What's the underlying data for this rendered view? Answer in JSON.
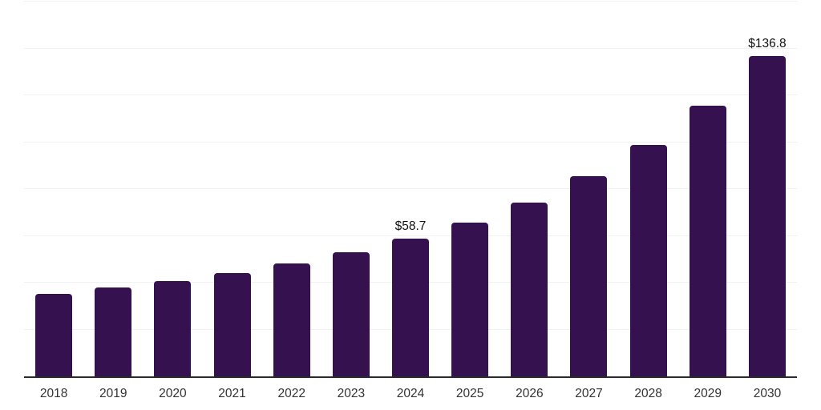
{
  "chart_data": {
    "type": "bar",
    "title": "",
    "xlabel": "",
    "ylabel": "",
    "categories": [
      "2018",
      "2019",
      "2020",
      "2021",
      "2022",
      "2023",
      "2024",
      "2025",
      "2026",
      "2027",
      "2028",
      "2029",
      "2030"
    ],
    "values": [
      35.3,
      37.9,
      40.8,
      44.2,
      48.2,
      53.1,
      58.7,
      65.7,
      74.3,
      85.5,
      98.9,
      115.7,
      136.8
    ],
    "data_labels": {
      "2024": "$58.7",
      "2030": "$136.8"
    },
    "value_prefix": "$",
    "ylim": [
      0,
      160
    ],
    "grid_step": 20,
    "grid": "horizontal",
    "legend": "none",
    "y_axis_labels_visible": false,
    "colors": {
      "bar": "#35114F",
      "grid_line": "#f1f1f1",
      "axis_line": "#2a2a2a",
      "tick_label": "#333333",
      "data_label": "#111111",
      "background": "#ffffff"
    }
  }
}
